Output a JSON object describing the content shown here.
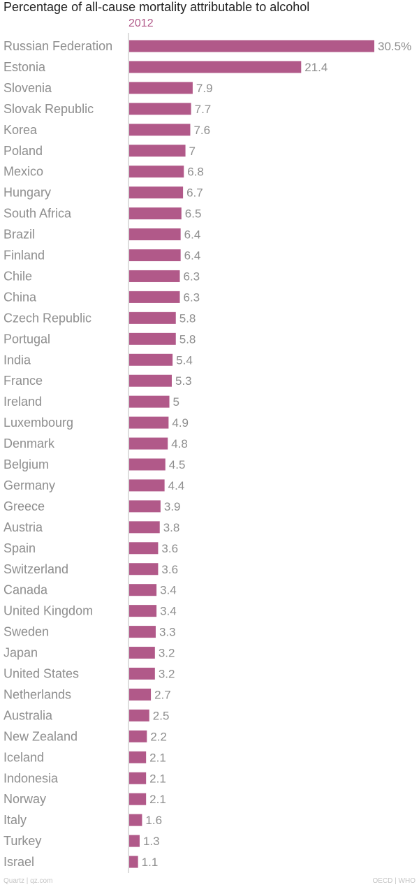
{
  "chart_data": {
    "type": "bar",
    "orientation": "horizontal",
    "title": "Percentage of all-cause mortality attributable to alcohol",
    "series_name": "2012",
    "bar_color": "#b15989",
    "categories": [
      "Russian Federation",
      "Estonia",
      "Slovenia",
      "Slovak Republic",
      "Korea",
      "Poland",
      "Mexico",
      "Hungary",
      "South Africa",
      "Brazil",
      "Finland",
      "Chile",
      "China",
      "Czech Republic",
      "Portugal",
      "India",
      "France",
      "Ireland",
      "Luxembourg",
      "Denmark",
      "Belgium",
      "Germany",
      "Greece",
      "Austria",
      "Spain",
      "Switzerland",
      "Canada",
      "United Kingdom",
      "Sweden",
      "Japan",
      "United States",
      "Netherlands",
      "Australia",
      "New Zealand",
      "Iceland",
      "Indonesia",
      "Norway",
      "Italy",
      "Turkey",
      "Israel"
    ],
    "values": [
      30.5,
      21.4,
      7.9,
      7.7,
      7.6,
      7,
      6.8,
      6.7,
      6.5,
      6.4,
      6.4,
      6.3,
      6.3,
      5.8,
      5.8,
      5.4,
      5.3,
      5,
      4.9,
      4.8,
      4.5,
      4.4,
      3.9,
      3.8,
      3.6,
      3.6,
      3.4,
      3.4,
      3.3,
      3.2,
      3.2,
      2.7,
      2.5,
      2.2,
      2.1,
      2.1,
      2.1,
      1.6,
      1.3,
      1.1
    ],
    "value_labels": [
      "30.5%",
      "21.4",
      "7.9",
      "7.7",
      "7.6",
      "7",
      "6.8",
      "6.7",
      "6.5",
      "6.4",
      "6.4",
      "6.3",
      "6.3",
      "5.8",
      "5.8",
      "5.4",
      "5.3",
      "5",
      "4.9",
      "4.8",
      "4.5",
      "4.4",
      "3.9",
      "3.8",
      "3.6",
      "3.6",
      "3.4",
      "3.4",
      "3.3",
      "3.2",
      "3.2",
      "2.7",
      "2.5",
      "2.2",
      "2.1",
      "2.1",
      "2.1",
      "1.6",
      "1.3",
      "1.1"
    ],
    "xlim": [
      0,
      30.5
    ],
    "xlabel": "",
    "ylabel": "",
    "grid": false
  },
  "footer": {
    "source_left": "Quartz | qz.com",
    "source_right": "OECD | WHO"
  }
}
